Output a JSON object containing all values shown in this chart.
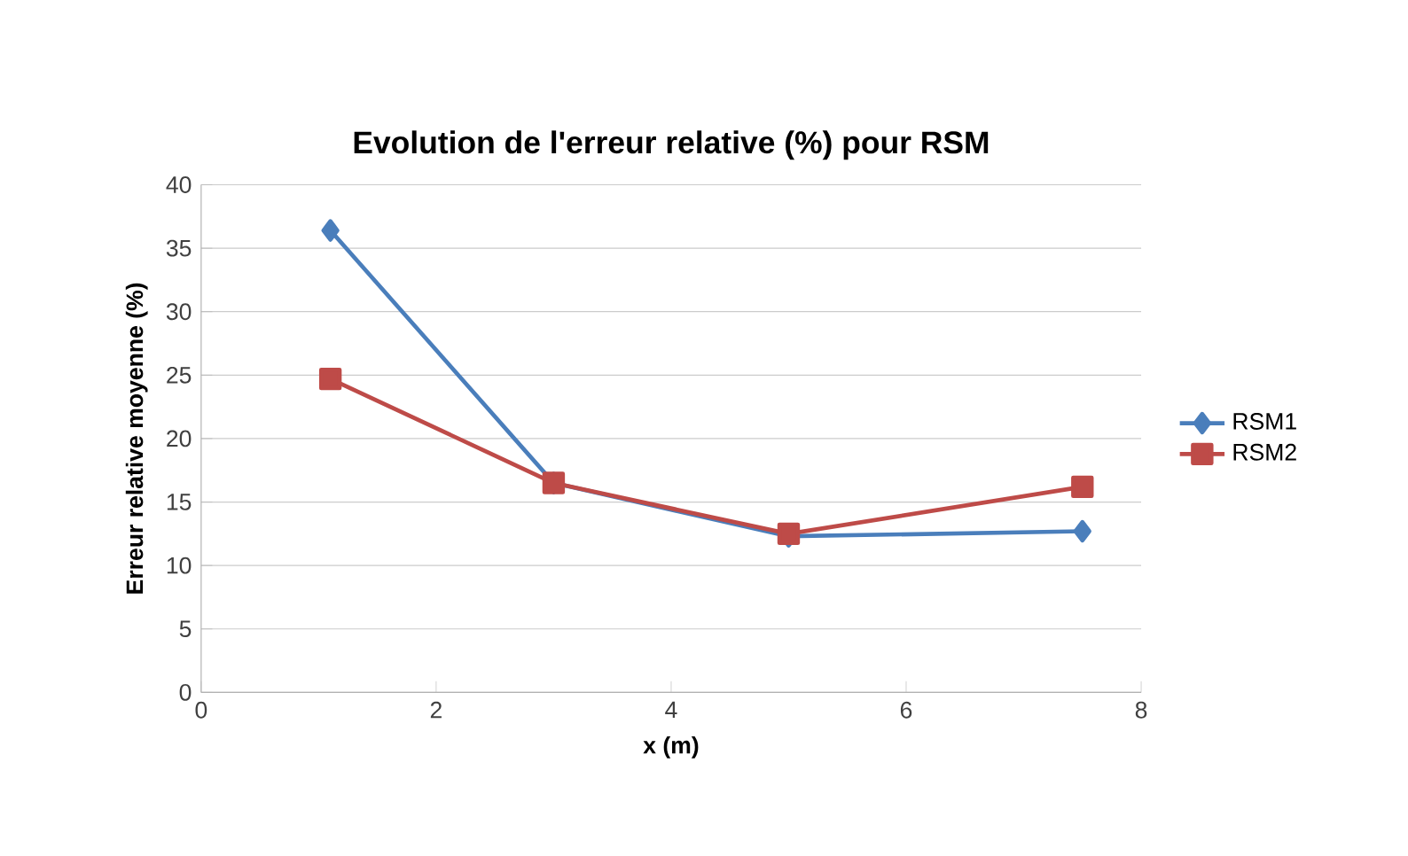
{
  "chart_data": {
    "type": "line",
    "title": "Evolution de l'erreur relative (%) pour RSM",
    "xlabel": "x (m)",
    "ylabel": "Erreur relative moyenne (%)",
    "xlim": [
      0,
      8
    ],
    "xticks": [
      0,
      2,
      4,
      6,
      8
    ],
    "ylim": [
      0,
      40
    ],
    "yticks": [
      0,
      5,
      10,
      15,
      20,
      25,
      30,
      35,
      40
    ],
    "grid": "y",
    "legend": "right",
    "marker": "diamond",
    "series": [
      {
        "name": "RSM1",
        "color": "#4a7ebb",
        "x": [
          1.1,
          3,
          5,
          7.5
        ],
        "values": [
          36.4,
          16.5,
          12.3,
          12.7
        ]
      },
      {
        "name": "RSM2",
        "color": "#be4b48",
        "marker": "square",
        "x": [
          1.1,
          3,
          5,
          7.5
        ],
        "values": [
          24.7,
          16.5,
          12.5,
          16.2
        ]
      }
    ]
  }
}
